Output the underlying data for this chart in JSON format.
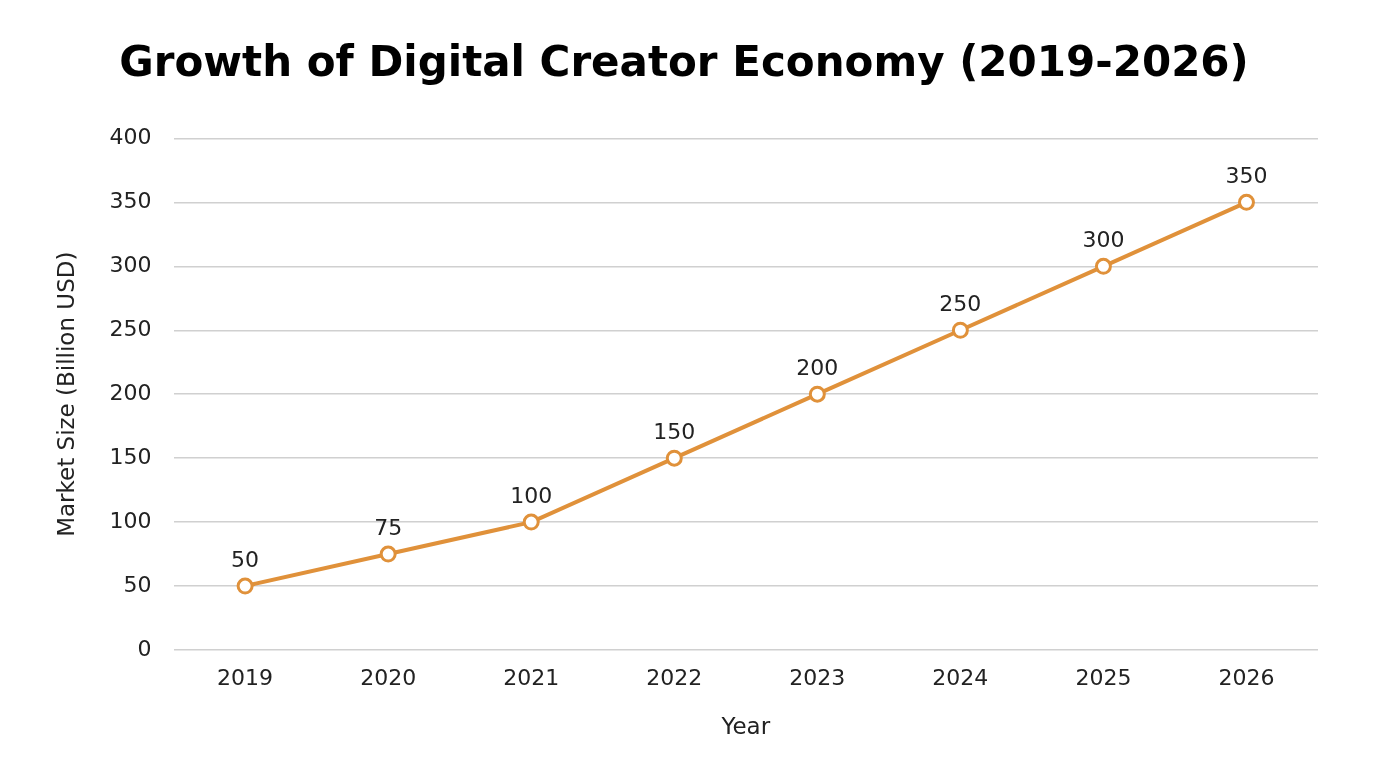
{
  "chart_data": {
    "type": "line",
    "title": "Growth of Digital Creator Economy (2019-2026)",
    "xlabel": "Year",
    "ylabel": "Market Size (Billion USD)",
    "categories": [
      "2019",
      "2020",
      "2021",
      "2022",
      "2023",
      "2024",
      "2025",
      "2026"
    ],
    "values": [
      50,
      75,
      100,
      150,
      200,
      250,
      300,
      350
    ],
    "color": "#e0913a",
    "ylim": [
      0,
      400
    ],
    "yticks": [
      0,
      50,
      100,
      150,
      200,
      250,
      300,
      350,
      400
    ],
    "grid": "y",
    "marker": "circle",
    "line_style": "solid",
    "data_labels": true,
    "legend": false
  }
}
